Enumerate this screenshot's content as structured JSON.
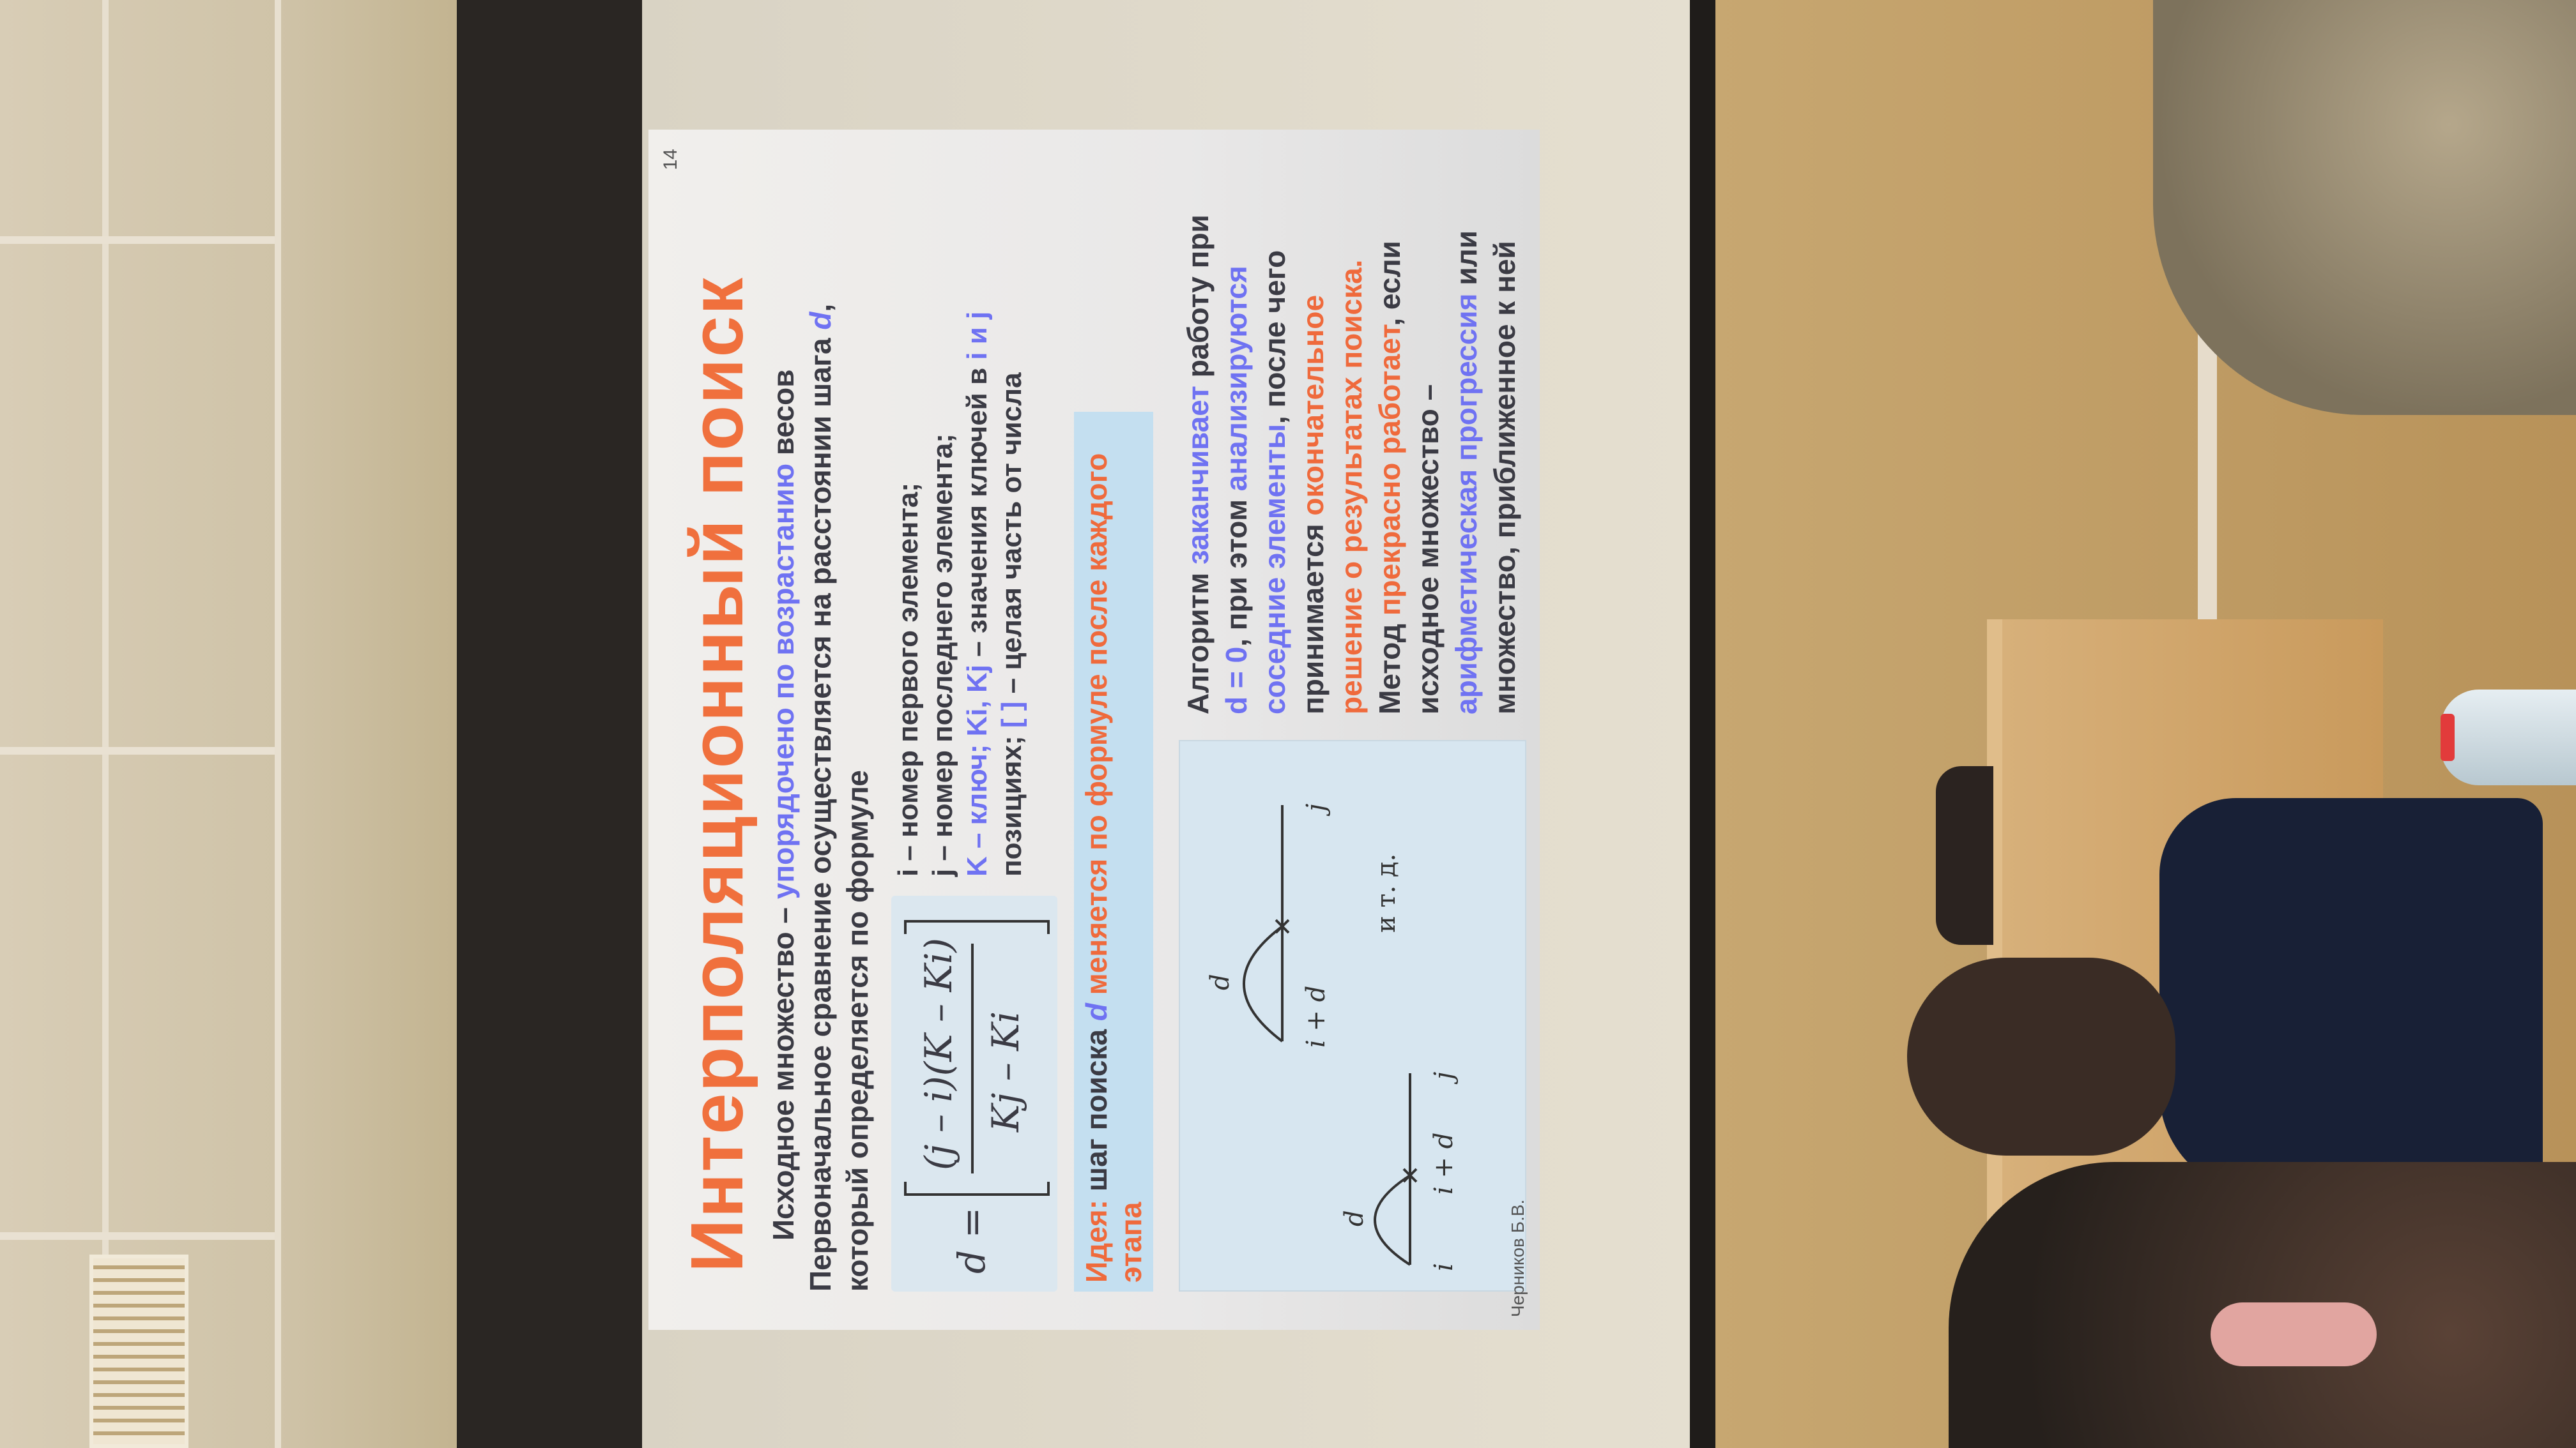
{
  "slide": {
    "title": "Интерполяционный поиск",
    "intro_1a": "Исходное множество – ",
    "intro_1b": "упорядочено по возрастанию",
    "intro_1c": " весов",
    "intro_2a": "Первоначальное сравнение осуществляется на расстоянии шага ",
    "intro_2b": "d",
    "intro_2c": ",",
    "intro_3": "который определяется по формуле",
    "formula_d": "d =",
    "formula_num": "(j – i)(K – Ki)",
    "formula_den": "Kj – Ki",
    "legend_1": "i – номер первого элемента;",
    "legend_2": "j – номер последнего элемента;",
    "legend_3a": "K – ключ; ",
    "legend_3b": "Ki, Kj",
    "legend_3c": " – значения ключей в ",
    "legend_3d": "i и j",
    "legend_4a": "позициях; ",
    "legend_4b": "[ ]",
    "legend_4c": " – целая часть от числа",
    "idea_a": "Идея:",
    "idea_b": " шаг поиска ",
    "idea_c": "d",
    "idea_d": " меняется по формуле после каждого этапа",
    "algo_1a": "Алгоритм ",
    "algo_1b": "заканчивает",
    "algo_1c": " работу при",
    "algo_2a": "d = 0",
    "algo_2b": ", при этом ",
    "algo_2c": "анализируются",
    "algo_3a": "соседние элементы",
    "algo_3b": ", после чего",
    "algo_4a": "принимается ",
    "algo_4b": "окончательное",
    "algo_5": "решение о результатах поиска.",
    "algo_6a": "Метод ",
    "algo_6b": "прекрасно работает",
    "algo_6c": ", если",
    "algo_7": "исходное множество –",
    "algo_8a": "арифметическая прогрессия",
    "algo_8b": " или",
    "algo_9": "множество, приближенное к ней",
    "diag_i": "i",
    "diag_d1": "d",
    "diag_ipd1": "i + d",
    "diag_j1": "j",
    "diag_d2": "d",
    "diag_ipd2": "i + d",
    "diag_j2": "j",
    "diag_etc": "и т. д.",
    "page_number": "14",
    "author": "Черников Б.В."
  }
}
